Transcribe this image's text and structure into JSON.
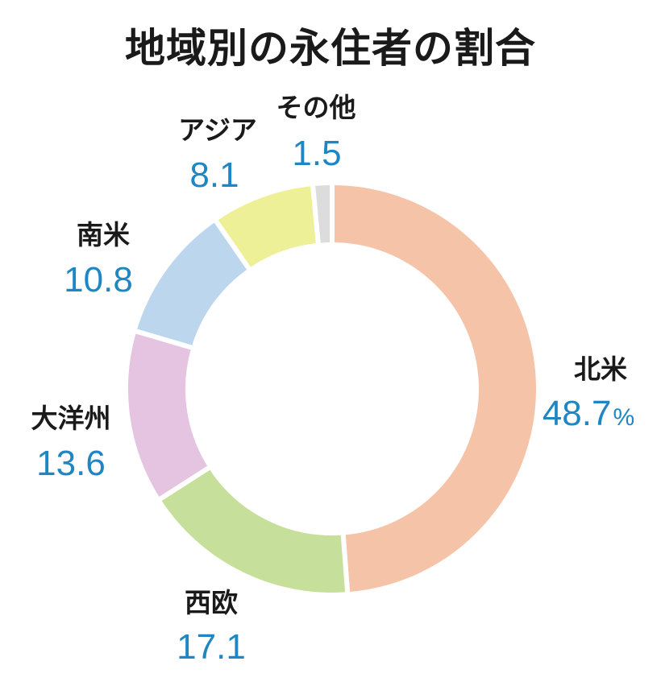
{
  "chart_data": {
    "type": "pie",
    "title": "地域別の永住者の割合",
    "unit": "%",
    "categories": [
      "北米",
      "西欧",
      "大洋州",
      "南米",
      "アジア",
      "その他"
    ],
    "values": [
      48.7,
      17.1,
      13.6,
      10.8,
      8.1,
      1.5
    ],
    "value_labels": [
      "48.7",
      "17.1",
      "13.6",
      "10.8",
      "8.1",
      "1.5"
    ],
    "colors": [
      "#f5c4a8",
      "#c6e09c",
      "#e4c4e0",
      "#bcd6ee",
      "#edf096",
      "#dcdcdc"
    ],
    "label_color": "#1f86c4",
    "donut": true,
    "start": "12 o'clock",
    "direction": "clockwise",
    "legend": "none (labels beside slices)"
  }
}
